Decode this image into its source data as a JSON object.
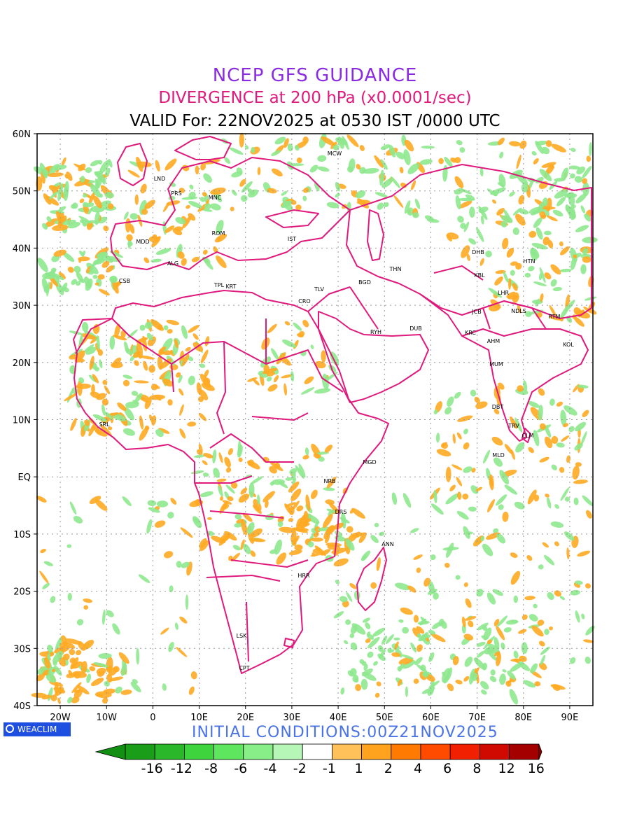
{
  "header": {
    "title": "NCEP GFS GUIDANCE",
    "subtitle": "DIVERGENCE at 200 hPa (x0.0001/sec)",
    "valid": "VALID For: 22NOV2025 at 0530 IST /0000 UTC"
  },
  "footer": {
    "logo": "WEACLIM",
    "initial_conditions": "INITIAL CONDITIONS:00Z21NOV2025"
  },
  "map": {
    "lon_ticks": [
      "20W",
      "10W",
      "0",
      "10E",
      "20E",
      "30E",
      "40E",
      "50E",
      "60E",
      "70E",
      "80E",
      "90E"
    ],
    "lat_ticks": [
      "60N",
      "50N",
      "40N",
      "30N",
      "20N",
      "10N",
      "EQ",
      "10S",
      "20S",
      "30S",
      "40S"
    ],
    "stations": [
      {
        "code": "MCW"
      },
      {
        "code": "LND"
      },
      {
        "code": "PRS"
      },
      {
        "code": "MNC"
      },
      {
        "code": "ROM"
      },
      {
        "code": "MDD"
      },
      {
        "code": "IST"
      },
      {
        "code": "ALG"
      },
      {
        "code": "CSB"
      },
      {
        "code": "TPL"
      },
      {
        "code": "KRT"
      },
      {
        "code": "TLV"
      },
      {
        "code": "CRO"
      },
      {
        "code": "BGD"
      },
      {
        "code": "THN"
      },
      {
        "code": "RYH"
      },
      {
        "code": "DUB"
      },
      {
        "code": "DHB"
      },
      {
        "code": "HTN"
      },
      {
        "code": "KBL"
      },
      {
        "code": "LHR"
      },
      {
        "code": "JCB"
      },
      {
        "code": "NDLS"
      },
      {
        "code": "RTM"
      },
      {
        "code": "KRC"
      },
      {
        "code": "AHM"
      },
      {
        "code": "KOL"
      },
      {
        "code": "MUM"
      },
      {
        "code": "DBT"
      },
      {
        "code": "TRV"
      },
      {
        "code": "CLM"
      },
      {
        "code": "MLD"
      },
      {
        "code": "MGD"
      },
      {
        "code": "NRB"
      },
      {
        "code": "DRS"
      },
      {
        "code": "ANN"
      },
      {
        "code": "HRR"
      },
      {
        "code": "LSK"
      },
      {
        "code": "CPT"
      },
      {
        "code": "SRL"
      }
    ]
  },
  "colorbar": {
    "labels": [
      "-16",
      "-12",
      "-8",
      "-6",
      "-4",
      "-2",
      "-1",
      "1",
      "2",
      "4",
      "6",
      "8",
      "12",
      "16"
    ],
    "colors": [
      "#1a9e1a",
      "#2ab82a",
      "#3ed43e",
      "#5ee65e",
      "#88ef88",
      "#b6f6b6",
      "#ffffff",
      "#ffc25a",
      "#ffa21e",
      "#ff7a00",
      "#ff4b00",
      "#f02000",
      "#d00a00",
      "#a50000"
    ],
    "low_arrow_color": "#138f13",
    "high_arrow_color": "#8c0000"
  },
  "colors": {
    "boundary": "#e0197d",
    "grid": "#999999",
    "convergence": "#8ee88e",
    "divergence": "#ffaa22"
  }
}
